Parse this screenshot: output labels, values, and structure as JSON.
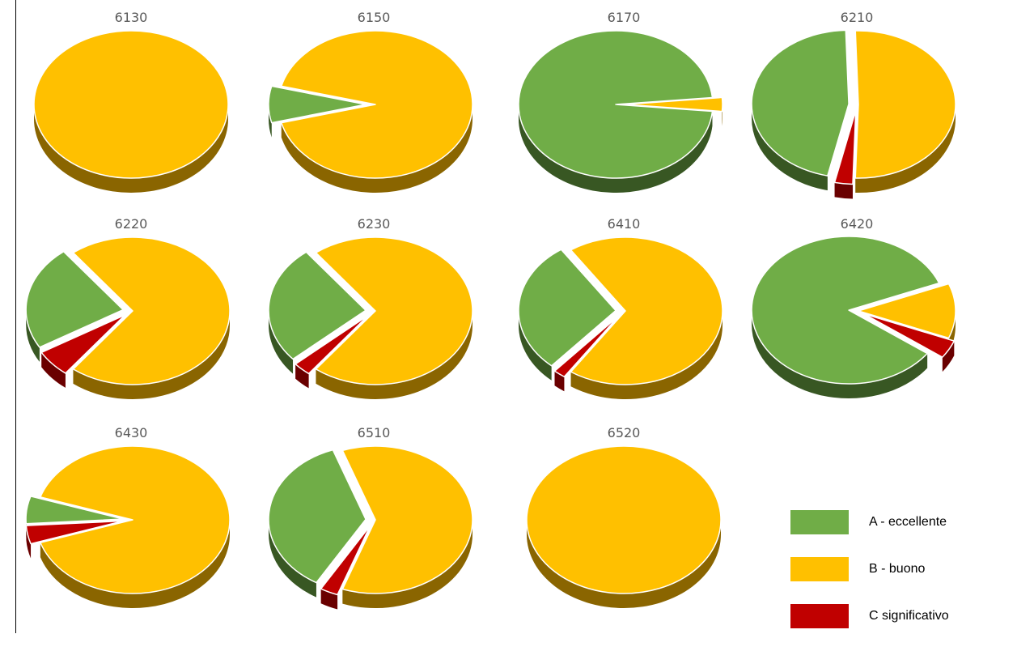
{
  "chart_data": [
    {
      "type": "pie",
      "title": "6130",
      "categories": [
        "A - eccellente",
        "B - buono",
        "C significativo"
      ],
      "values": [
        0,
        100,
        0
      ]
    },
    {
      "type": "pie",
      "title": "6150",
      "categories": [
        "A - eccellente",
        "B - buono",
        "C significativo"
      ],
      "values": [
        8,
        92,
        0
      ]
    },
    {
      "type": "pie",
      "title": "6170",
      "categories": [
        "A - eccellente",
        "B - buono",
        "C significativo"
      ],
      "values": [
        97,
        3,
        0
      ]
    },
    {
      "type": "pie",
      "title": "6210",
      "categories": [
        "A - eccellente",
        "B - buono",
        "C significativo"
      ],
      "values": [
        46,
        51,
        3
      ]
    },
    {
      "type": "pie",
      "title": "6220",
      "categories": [
        "A - eccellente",
        "B - buono",
        "C significativo"
      ],
      "values": [
        23,
        71,
        6
      ]
    },
    {
      "type": "pie",
      "title": "6230",
      "categories": [
        "A - eccellente",
        "B - buono",
        "C significativo"
      ],
      "values": [
        26,
        71,
        3
      ]
    },
    {
      "type": "pie",
      "title": "6410",
      "categories": [
        "A - eccellente",
        "B - buono",
        "C significativo"
      ],
      "values": [
        29,
        69,
        2
      ]
    },
    {
      "type": "pie",
      "title": "6420",
      "categories": [
        "A - eccellente",
        "B - buono",
        "C significativo"
      ],
      "values": [
        84,
        12,
        4
      ]
    },
    {
      "type": "pie",
      "title": "6430",
      "categories": [
        "A - eccellente",
        "B - buono",
        "C significativo"
      ],
      "values": [
        6,
        90,
        4
      ]
    },
    {
      "type": "pie",
      "title": "6510",
      "categories": [
        "A - eccellente",
        "B - buono",
        "C significativo"
      ],
      "values": [
        36,
        61,
        3
      ]
    },
    {
      "type": "pie",
      "title": "6520",
      "categories": [
        "A - eccellente",
        "B - buono",
        "C significativo"
      ],
      "values": [
        0,
        100,
        0
      ]
    }
  ],
  "legend": [
    {
      "label": "A - eccellente",
      "color": "#70AD47"
    },
    {
      "label": "B - buono",
      "color": "#FFC000"
    },
    {
      "label": "C significativo",
      "color": "#C00000"
    }
  ],
  "colors": {
    "A - eccellente": {
      "top": "#70AD47",
      "side": "#385723"
    },
    "B - buono": {
      "top": "#FFC000",
      "side": "#8A6500"
    },
    "C significativo": {
      "top": "#C00000",
      "side": "#6A0000"
    }
  }
}
